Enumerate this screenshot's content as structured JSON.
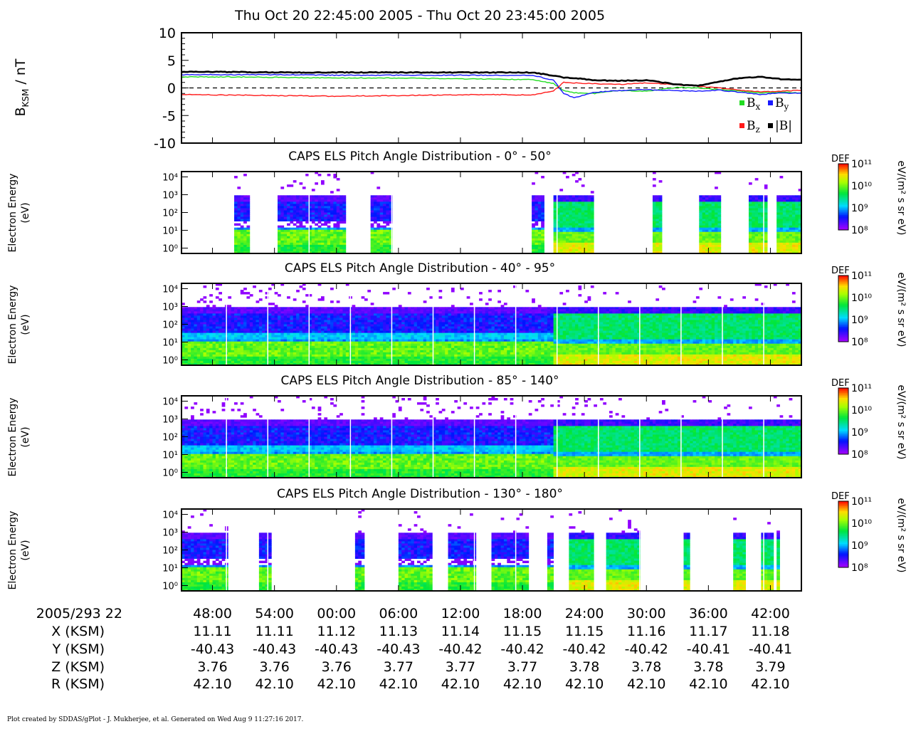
{
  "title": "Thu Oct 20 22:45:00 2005 - Thu Oct 20 23:45:00 2005",
  "footer": "Plot created by SDDAS/gPlot - J. Mukherjee, et al.  Generated on Wed Aug 9 11:27:16 2017.",
  "colors": {
    "bx": "#22dd22",
    "by": "#1a1aff",
    "bz": "#ff1a1a",
    "bmag": "#000000"
  },
  "chart_data": [
    {
      "type": "line",
      "ylabel_main": "B",
      "ylabel_sub": "KSM",
      "ylabel_unit": " / nT",
      "ylim": [
        -10,
        10
      ],
      "yticks": [
        "10",
        "5",
        "0",
        "-5",
        "-10"
      ],
      "ytick_values": [
        10,
        5,
        0,
        -5,
        -10
      ],
      "legend": [
        {
          "main": "B",
          "sub": "x",
          "color": "#22dd22"
        },
        {
          "main": "B",
          "sub": "y",
          "color": "#1a1aff"
        },
        {
          "main": "B",
          "sub": "z",
          "color": "#ff1a1a"
        },
        {
          "main": "|B|",
          "sub": "",
          "color": "#000000"
        }
      ],
      "x_minutes": [
        0,
        5,
        10,
        15,
        20,
        25,
        30,
        34,
        36,
        37,
        38,
        40,
        42,
        45,
        48,
        50,
        52,
        54,
        56,
        58,
        60
      ],
      "series": [
        {
          "name": "Bx",
          "color": "#22dd22",
          "values": [
            2.0,
            2.0,
            1.9,
            1.8,
            1.8,
            1.7,
            1.6,
            1.5,
            0.8,
            -0.5,
            -0.9,
            -1.0,
            -0.5,
            -0.6,
            0.1,
            0.0,
            -0.3,
            -0.6,
            -0.9,
            -0.8,
            -0.9
          ]
        },
        {
          "name": "By",
          "color": "#1a1aff",
          "values": [
            2.4,
            2.4,
            2.4,
            2.3,
            2.3,
            2.3,
            2.3,
            2.3,
            1.4,
            -1.0,
            -1.8,
            -0.8,
            -0.5,
            -0.3,
            -0.5,
            -0.6,
            -0.4,
            -0.8,
            -1.2,
            -0.9,
            -1.0
          ]
        },
        {
          "name": "Bz",
          "color": "#ff1a1a",
          "values": [
            -1.2,
            -1.3,
            -1.4,
            -1.5,
            -1.4,
            -1.3,
            -1.2,
            -1.3,
            -0.5,
            1.0,
            0.9,
            0.8,
            0.6,
            0.9,
            0.6,
            0.3,
            0.0,
            -0.4,
            -0.7,
            -0.6,
            -0.4
          ]
        },
        {
          "name": "|B|",
          "color": "#000000",
          "values": [
            2.9,
            2.9,
            2.8,
            2.8,
            2.8,
            2.8,
            2.8,
            2.8,
            2.2,
            1.9,
            1.8,
            1.4,
            1.3,
            1.4,
            0.6,
            0.4,
            1.1,
            1.8,
            2.0,
            1.6,
            1.5
          ]
        }
      ],
      "zero_line": "dashed"
    },
    {
      "type": "heatmap",
      "title": "CAPS ELS Pitch Angle Distribution - 0° - 50°",
      "ylabel": [
        "Electron Energy",
        "(eV)"
      ],
      "colorbar": {
        "label": "DEF",
        "unit": "eV/(m² s sr eV)",
        "ticks": [
          "10¹¹",
          "10¹⁰",
          "10⁹",
          "10⁸"
        ],
        "range_log": [
          8,
          11
        ]
      },
      "yticks": [
        "10⁴",
        "10³",
        "10²",
        "10¹",
        "10⁰"
      ],
      "coverage_minutes": [
        [
          5.2,
          6.7
        ],
        [
          9.3,
          15.8
        ],
        [
          18.3,
          20.3
        ],
        [
          33.8,
          35.0
        ],
        [
          36.0,
          40.0
        ],
        [
          45.5,
          46.5
        ],
        [
          50.0,
          52.3
        ],
        [
          55.0,
          56.7
        ],
        [
          57.5,
          60.0
        ]
      ]
    },
    {
      "type": "heatmap",
      "title": "CAPS ELS Pitch Angle Distribution - 40° - 95°",
      "ylabel": [
        "Electron Energy",
        "(eV)"
      ],
      "colorbar": {
        "label": "DEF",
        "unit": "eV/(m² s sr eV)",
        "ticks": [
          "10¹¹",
          "10¹⁰",
          "10⁹",
          "10⁸"
        ],
        "range_log": [
          8,
          11
        ]
      },
      "yticks": [
        "10⁴",
        "10³",
        "10²",
        "10¹",
        "10⁰"
      ],
      "coverage_minutes": [
        [
          0,
          60
        ]
      ]
    },
    {
      "type": "heatmap",
      "title": "CAPS ELS Pitch Angle Distribution - 85° - 140°",
      "ylabel": [
        "Electron Energy",
        "(eV)"
      ],
      "colorbar": {
        "label": "DEF",
        "unit": "eV/(m² s sr eV)",
        "ticks": [
          "10¹¹",
          "10¹⁰",
          "10⁹",
          "10⁸"
        ],
        "range_log": [
          8,
          11
        ]
      },
      "yticks": [
        "10⁴",
        "10³",
        "10²",
        "10¹",
        "10⁰"
      ],
      "coverage_minutes": [
        [
          0,
          60
        ]
      ]
    },
    {
      "type": "heatmap",
      "title": "CAPS ELS Pitch Angle Distribution - 130° - 180°",
      "ylabel": [
        "Electron Energy",
        "(eV)"
      ],
      "colorbar": {
        "label": "DEF",
        "unit": "eV/(m² s sr eV)",
        "ticks": [
          "10¹¹",
          "10¹⁰",
          "10⁹",
          "10⁸"
        ],
        "range_log": [
          8,
          11
        ]
      },
      "yticks": [
        "10⁴",
        "10³",
        "10²",
        "10¹",
        "10⁰"
      ],
      "coverage_minutes": [
        [
          0.1,
          4.4
        ],
        [
          7.5,
          8.8
        ],
        [
          16.8,
          17.6
        ],
        [
          21.0,
          24.3
        ],
        [
          25.8,
          28.4
        ],
        [
          29.9,
          33.5
        ],
        [
          35.5,
          36.0
        ],
        [
          37.5,
          40.0
        ],
        [
          41.0,
          44.5
        ],
        [
          48.6,
          49.3
        ],
        [
          53.1,
          53.2
        ],
        [
          53.5,
          54.6
        ],
        [
          56.0,
          57.2
        ],
        [
          57.7,
          57.8
        ]
      ]
    }
  ],
  "time_axis": {
    "origin_label": "2005/293 22",
    "ticks": [
      "48:00",
      "54:00",
      "00:00",
      "06:00",
      "12:00",
      "18:00",
      "24:00",
      "30:00",
      "36:00",
      "42:00"
    ],
    "tick_minutes": [
      3,
      9,
      15,
      21,
      27,
      33,
      39,
      45,
      51,
      57
    ]
  },
  "ephemeris": [
    {
      "label": "X (KSM)",
      "values": [
        "11.11",
        "11.11",
        "11.12",
        "11.13",
        "11.14",
        "11.15",
        "11.15",
        "11.16",
        "11.17",
        "11.18"
      ]
    },
    {
      "label": "Y (KSM)",
      "values": [
        "-40.43",
        "-40.43",
        "-40.43",
        "-40.43",
        "-40.42",
        "-40.42",
        "-40.42",
        "-40.42",
        "-40.41",
        "-40.41"
      ]
    },
    {
      "label": "Z (KSM)",
      "values": [
        "3.76",
        "3.76",
        "3.76",
        "3.77",
        "3.77",
        "3.77",
        "3.78",
        "3.78",
        "3.78",
        "3.79"
      ]
    },
    {
      "label": "R (KSM)",
      "values": [
        "42.10",
        "42.10",
        "42.10",
        "42.10",
        "42.10",
        "42.10",
        "42.10",
        "42.10",
        "42.10",
        "42.10"
      ]
    }
  ]
}
